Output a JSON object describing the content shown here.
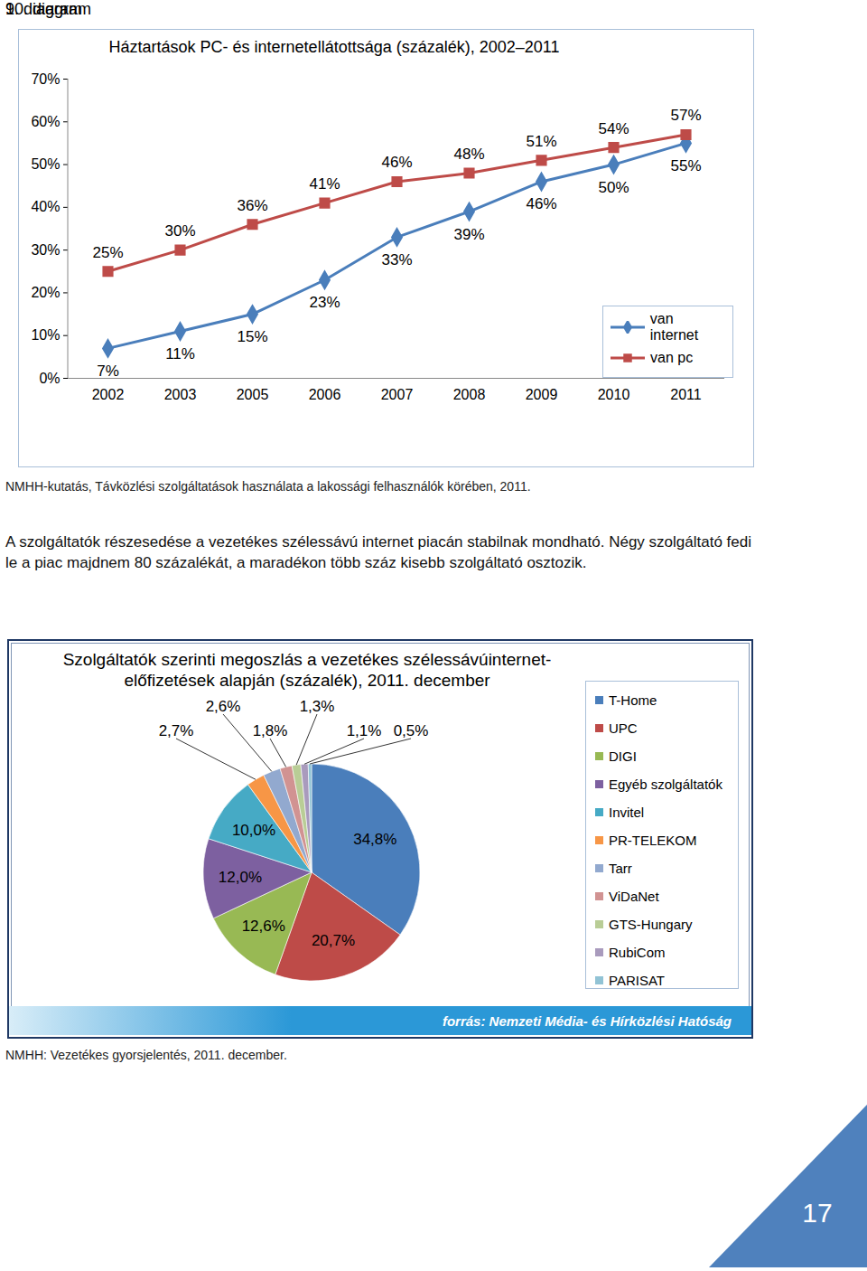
{
  "document": {
    "figure1_caption": "9. diagram",
    "figure1_source": "NMHH-kutatás, Távközlési szolgáltatások használata a lakossági felhasználók körében, 2011.",
    "paragraph": "A szolgáltatók részesedése a vezetékes szélessávú internet piacán stabilnak mondható. Négy szolgáltató fedi le a piac majdnem 80 százalékát, a maradékon több száz kisebb szolgáltató osztozik.",
    "figure2_caption": "10. diagram",
    "figure2_banner": "forrás: Nemzeti Média- és Hírközlési Hatóság",
    "figure2_source": "NMHH: Vezetékes gyorsjelentés, 2011. december.",
    "page_number": "17"
  },
  "chart_data": [
    {
      "type": "line",
      "title": "Háztartások PC- és internetellátottsága (százalék), 2002–2011",
      "categories": [
        "2002",
        "2003",
        "2005",
        "2006",
        "2007",
        "2008",
        "2009",
        "2010",
        "2011"
      ],
      "series": [
        {
          "name": "van internet",
          "color": "#4a7ebb",
          "marker": "diamond",
          "values": [
            7,
            11,
            15,
            23,
            33,
            39,
            46,
            50,
            55
          ],
          "value_labels": [
            "7%",
            "11%",
            "15%",
            "23%",
            "33%",
            "39%",
            "46%",
            "50%",
            "55%"
          ]
        },
        {
          "name": "van pc",
          "color": "#be4b48",
          "marker": "square",
          "values": [
            25,
            30,
            36,
            41,
            46,
            48,
            51,
            54,
            57
          ],
          "value_labels": [
            "25%",
            "30%",
            "36%",
            "41%",
            "46%",
            "48%",
            "51%",
            "54%",
            "57%"
          ]
        }
      ],
      "ylim": [
        0,
        70
      ],
      "yticks": [
        {
          "value": 0,
          "label": "0%"
        },
        {
          "value": 10,
          "label": "10%"
        },
        {
          "value": 20,
          "label": "20%"
        },
        {
          "value": 30,
          "label": "30%"
        },
        {
          "value": 40,
          "label": "40%"
        },
        {
          "value": 50,
          "label": "50%"
        },
        {
          "value": 60,
          "label": "60%"
        },
        {
          "value": 70,
          "label": "70%"
        }
      ],
      "grid": false,
      "legend": "lower right",
      "data_labels": true
    },
    {
      "type": "pie",
      "title": "Szolgáltatók szerinti megoszlás a vezetékes szélessávúinternet-előfizetések alapján (százalék), 2011. december",
      "categories": [
        "T-Home",
        "UPC",
        "DIGI",
        "Egyéb szolgáltatók",
        "Invitel",
        "PR-TELEKOM",
        "Tarr",
        "ViDaNet",
        "GTS-Hungary",
        "RubiCom",
        "PARISAT"
      ],
      "values": [
        34.8,
        20.7,
        12.6,
        12.0,
        10.0,
        2.7,
        2.6,
        1.8,
        1.3,
        1.1,
        0.5
      ],
      "value_labels": [
        "34,8%",
        "20,7%",
        "12,6%",
        "12,0%",
        "10,0%",
        "2,7%",
        "2,6%",
        "1,8%",
        "1,3%",
        "1,1%",
        "0,5%"
      ],
      "colors": [
        "#4a7ebb",
        "#be4b48",
        "#98b954",
        "#7d60a0",
        "#46aac5",
        "#f79646",
        "#92a9cf",
        "#d19392",
        "#b9cd96",
        "#a99bbd",
        "#91c3d5"
      ],
      "legend": "right",
      "data_labels": true
    }
  ]
}
